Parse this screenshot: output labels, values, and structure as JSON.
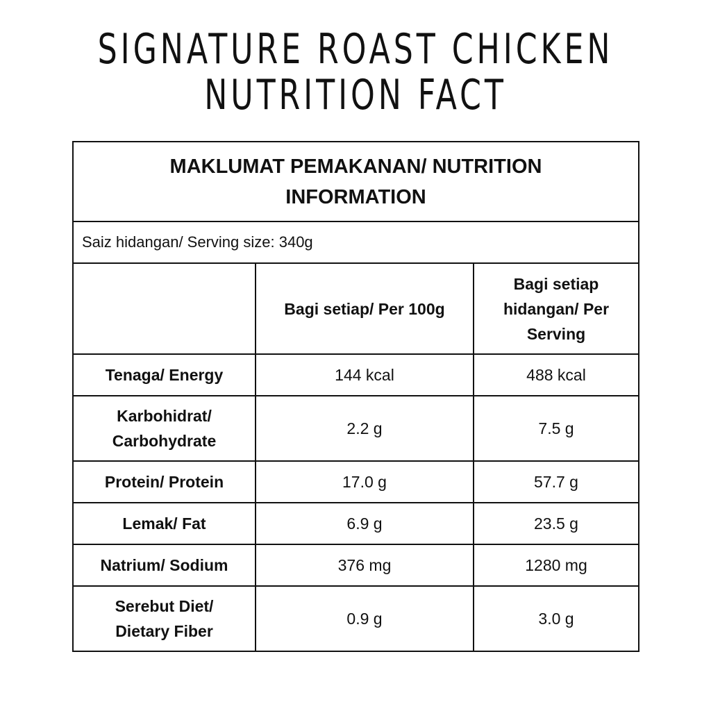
{
  "title_line1": "SIGNATURE ROAST CHICKEN",
  "title_line2": "NUTRITION FACT",
  "table": {
    "heading": "MAKLUMAT PEMAKANAN/ NUTRITION INFORMATION",
    "serving": "Saiz hidangan/ Serving size: 340g",
    "col1": "Bagi setiap/ Per 100g",
    "col2": "Bagi setiap hidangan/ Per Serving",
    "rows": [
      {
        "label": "Tenaga/ Energy",
        "per100": "144 kcal",
        "serving": "488 kcal"
      },
      {
        "label": "Karbohidrat/ Carbohydrate",
        "per100": "2.2 g",
        "serving": "7.5 g"
      },
      {
        "label": "Protein/ Protein",
        "per100": "17.0 g",
        "serving": "57.7 g"
      },
      {
        "label": "Lemak/ Fat",
        "per100": "6.9 g",
        "serving": "23.5 g"
      },
      {
        "label": "Natrium/ Sodium",
        "per100": "376 mg",
        "serving": "1280 mg"
      },
      {
        "label": "Serebut Diet/ Dietary Fiber",
        "per100": "0.9 g",
        "serving": "3.0 g"
      }
    ]
  }
}
